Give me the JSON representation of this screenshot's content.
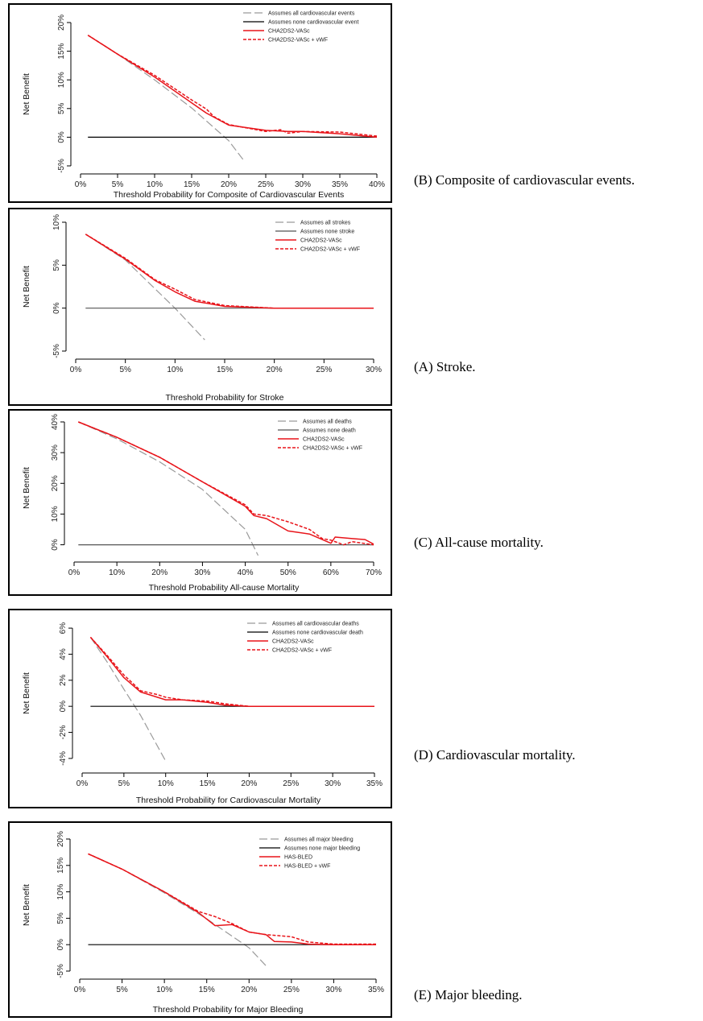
{
  "chart_data": [
    {
      "type": "line",
      "panel": "B",
      "caption": "(B) Composite of cardiovascular events.",
      "xlabel": "Threshold Probability for Composite of Cardiovascular Events",
      "ylabel": "Net Benefit",
      "xlim": [
        0,
        40
      ],
      "ylim": [
        -5,
        20
      ],
      "xticks": [
        "0%",
        "5%",
        "10%",
        "15%",
        "20%",
        "25%",
        "30%",
        "35%",
        "40%"
      ],
      "yticks": [
        "-5%",
        "0%",
        "5%",
        "10%",
        "15%",
        "20%"
      ],
      "xtick_values": [
        0,
        5,
        10,
        15,
        20,
        25,
        30,
        35,
        40
      ],
      "ytick_values": [
        -5,
        0,
        5,
        10,
        15,
        20
      ],
      "legend": "top-right",
      "series": [
        {
          "name": "Assumes all cardiovascular events",
          "color": "#9a9a9a",
          "dash": "long",
          "x": [
            1,
            5,
            10,
            15,
            20,
            22
          ],
          "y": [
            17.8,
            14.5,
            10.0,
            5.1,
            -0.6,
            -4.0
          ]
        },
        {
          "name": "Assumes none cardiovascular event",
          "color": "#000000",
          "dash": "solid",
          "x": [
            1,
            40
          ],
          "y": [
            0,
            0
          ]
        },
        {
          "name": "CHA2DS2-VASc",
          "color": "#e8141a",
          "dash": "solid",
          "x": [
            1,
            5,
            10,
            15,
            17,
            18,
            20,
            25,
            28,
            30,
            35,
            40
          ],
          "y": [
            17.8,
            14.5,
            10.5,
            6.0,
            4.2,
            3.5,
            2.1,
            1.2,
            1.0,
            1.0,
            0.6,
            0.0
          ]
        },
        {
          "name": "CHA2DS2-VASc + vWF",
          "color": "#e8141a",
          "dash": "short",
          "x": [
            1,
            5,
            10,
            15,
            17,
            18,
            20,
            25,
            27,
            28,
            30,
            35,
            40
          ],
          "y": [
            17.8,
            14.5,
            10.8,
            6.5,
            4.9,
            3.6,
            2.2,
            1.0,
            1.3,
            0.7,
            1.0,
            0.9,
            0.2
          ]
        }
      ]
    },
    {
      "type": "line",
      "panel": "A",
      "caption": "(A) Stroke.",
      "xlabel": "Threshold Probability for Stroke",
      "ylabel": "Net Benefit",
      "xlim": [
        0,
        30
      ],
      "ylim": [
        -5,
        10
      ],
      "xticks": [
        "0%",
        "5%",
        "10%",
        "15%",
        "20%",
        "25%",
        "30%"
      ],
      "yticks": [
        "-5%",
        "0%",
        "5%",
        "10%"
      ],
      "xtick_values": [
        0,
        5,
        10,
        15,
        20,
        25,
        30
      ],
      "ytick_values": [
        -5,
        0,
        5,
        10
      ],
      "legend": "top-right",
      "series": [
        {
          "name": "Assumes all strokes",
          "color": "#9a9a9a",
          "dash": "long",
          "x": [
            1,
            5,
            10,
            13
          ],
          "y": [
            8.6,
            5.6,
            0.0,
            -3.7
          ]
        },
        {
          "name": "Assumes none stroke",
          "color": "#555555",
          "dash": "solid",
          "x": [
            1,
            30
          ],
          "y": [
            0,
            0
          ]
        },
        {
          "name": "CHA2DS2-VASc",
          "color": "#e8141a",
          "dash": "solid",
          "x": [
            1,
            5,
            8,
            10,
            12,
            15,
            20,
            30
          ],
          "y": [
            8.6,
            5.7,
            3.2,
            1.9,
            0.8,
            0.2,
            0.0,
            0.0
          ]
        },
        {
          "name": "CHA2DS2-VASc + vWF",
          "color": "#e8141a",
          "dash": "short",
          "x": [
            1,
            5,
            8,
            10,
            12,
            15,
            20,
            30
          ],
          "y": [
            8.6,
            5.8,
            3.3,
            2.2,
            1.0,
            0.3,
            0.0,
            0.0
          ]
        }
      ]
    },
    {
      "type": "line",
      "panel": "C",
      "caption": "(C) All-cause mortality.",
      "xlabel": "Threshold Probability All-cause Mortality",
      "ylabel": "Net Benefit",
      "xlim": [
        0,
        70
      ],
      "ylim": [
        -3,
        40
      ],
      "xticks": [
        "0%",
        "10%",
        "20%",
        "30%",
        "40%",
        "50%",
        "60%",
        "70%"
      ],
      "yticks": [
        "0%",
        "10%",
        "20%",
        "30%",
        "40%"
      ],
      "xtick_values": [
        0,
        10,
        20,
        30,
        40,
        50,
        60,
        70
      ],
      "ytick_values": [
        0,
        10,
        20,
        30,
        40
      ],
      "legend": "top-right",
      "series": [
        {
          "name": "Assumes all deaths",
          "color": "#9a9a9a",
          "dash": "long",
          "x": [
            1,
            10,
            20,
            30,
            40,
            43
          ],
          "y": [
            40,
            34.5,
            27,
            18,
            5,
            -3.5
          ]
        },
        {
          "name": "Assumes none death",
          "color": "#555555",
          "dash": "solid",
          "x": [
            1,
            70
          ],
          "y": [
            0,
            0
          ]
        },
        {
          "name": "CHA2DS2-VASc",
          "color": "#e8141a",
          "dash": "solid",
          "x": [
            1,
            10,
            20,
            30,
            40,
            42,
            45,
            50,
            55,
            60,
            61,
            65,
            68,
            70
          ],
          "y": [
            40,
            35,
            28.5,
            20.5,
            12.5,
            9.5,
            8.5,
            4.5,
            3.5,
            0.5,
            2.5,
            2,
            1.7,
            0.2
          ]
        },
        {
          "name": "CHA2DS2-VASc + vWF",
          "color": "#e8141a",
          "dash": "short",
          "x": [
            1,
            10,
            20,
            30,
            40,
            42,
            45,
            50,
            55,
            58,
            60,
            63,
            65,
            70
          ],
          "y": [
            40,
            35,
            28.5,
            20.5,
            13,
            10,
            9.5,
            7.5,
            5,
            2,
            1.5,
            0,
            1,
            0
          ]
        }
      ]
    },
    {
      "type": "line",
      "panel": "D",
      "caption": "(D) Cardiovascular mortality.",
      "xlabel": "Threshold Probability for Cardiovascular Mortality",
      "ylabel": "Net Benefit",
      "xlim": [
        0,
        35
      ],
      "ylim": [
        -4.5,
        6.5
      ],
      "xticks": [
        "0%",
        "5%",
        "10%",
        "15%",
        "20%",
        "25%",
        "30%",
        "35%"
      ],
      "yticks": [
        "-4%",
        "-2%",
        "0%",
        "2%",
        "4%",
        "6%"
      ],
      "xtick_values": [
        0,
        5,
        10,
        15,
        20,
        25,
        30,
        35
      ],
      "ytick_values": [
        -4,
        -2,
        0,
        2,
        4,
        6
      ],
      "legend": "top-right",
      "series": [
        {
          "name": "Assumes all cardiovascular deaths",
          "color": "#9a9a9a",
          "dash": "long",
          "x": [
            1,
            3,
            5,
            7,
            10
          ],
          "y": [
            5.3,
            3.4,
            1.3,
            -0.7,
            -4.2
          ]
        },
        {
          "name": "Assumes none cardiovascular death",
          "color": "#000000",
          "dash": "solid",
          "x": [
            1,
            35
          ],
          "y": [
            0,
            0
          ]
        },
        {
          "name": "CHA2DS2-VASc",
          "color": "#e8141a",
          "dash": "solid",
          "x": [
            1,
            3,
            5,
            7,
            9,
            10,
            12,
            15,
            17,
            20,
            25,
            35
          ],
          "y": [
            5.3,
            3.8,
            2.2,
            1.1,
            0.7,
            0.5,
            0.5,
            0.3,
            0.1,
            0.0,
            0.0,
            0.0
          ]
        },
        {
          "name": "CHA2DS2-VASc + vWF",
          "color": "#e8141a",
          "dash": "short",
          "x": [
            1,
            3,
            5,
            7,
            9,
            10,
            12,
            15,
            17,
            20,
            25,
            35
          ],
          "y": [
            5.3,
            3.9,
            2.4,
            1.2,
            0.9,
            0.7,
            0.5,
            0.4,
            0.2,
            0.0,
            0.0,
            0.0
          ]
        }
      ]
    },
    {
      "type": "line",
      "panel": "E",
      "caption": "(E) Major bleeding.",
      "xlabel": "Threshold Probability for Major Bleeding",
      "ylabel": "Net Benefit",
      "xlim": [
        0,
        35
      ],
      "ylim": [
        -5,
        20
      ],
      "xticks": [
        "0%",
        "5%",
        "10%",
        "15%",
        "20%",
        "25%",
        "30%",
        "35%"
      ],
      "yticks": [
        "-5%",
        "0%",
        "5%",
        "10%",
        "15%",
        "20%"
      ],
      "xtick_values": [
        0,
        5,
        10,
        15,
        20,
        25,
        30,
        35
      ],
      "ytick_values": [
        -5,
        0,
        5,
        10,
        15,
        20
      ],
      "legend": "top-right",
      "series": [
        {
          "name": "Assumes all major bleeding",
          "color": "#9a9a9a",
          "dash": "long",
          "x": [
            1,
            5,
            10,
            15,
            20,
            22
          ],
          "y": [
            17.2,
            14.3,
            9.8,
            4.9,
            -0.6,
            -4.0
          ]
        },
        {
          "name": "Assumes none major bleeding",
          "color": "#000000",
          "dash": "solid",
          "x": [
            1,
            35
          ],
          "y": [
            0,
            0
          ]
        },
        {
          "name": "HAS-BLED",
          "color": "#e8141a",
          "dash": "solid",
          "x": [
            1,
            5,
            10,
            14,
            16,
            18,
            20,
            22,
            23,
            25,
            27,
            30,
            35
          ],
          "y": [
            17.2,
            14.3,
            10.0,
            6.1,
            3.6,
            3.8,
            2.4,
            1.9,
            0.6,
            0.5,
            0.1,
            0.0,
            0.0
          ]
        },
        {
          "name": "HAS-BLED + vWF",
          "color": "#e8141a",
          "dash": "short",
          "x": [
            1,
            5,
            10,
            14,
            16,
            18,
            20,
            22,
            25,
            27,
            30,
            35
          ],
          "y": [
            17.2,
            14.3,
            10.0,
            6.3,
            5.3,
            4.0,
            2.4,
            1.9,
            1.5,
            0.5,
            0.1,
            0.1
          ]
        }
      ]
    }
  ]
}
